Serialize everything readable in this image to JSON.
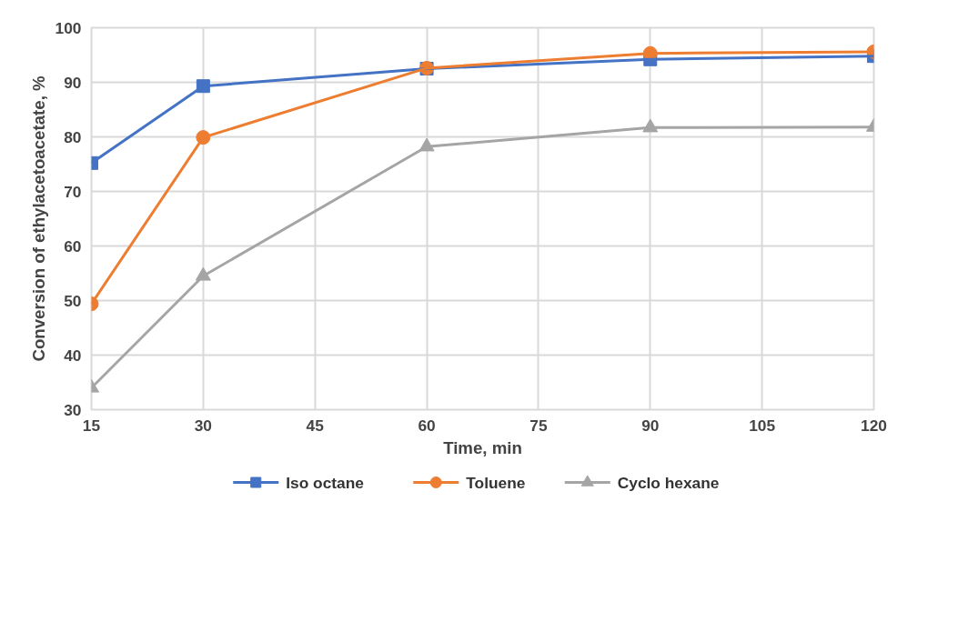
{
  "chart_data": {
    "type": "line",
    "xlabel": "Time, min",
    "ylabel": "Conversion of ethylacetoacetate, %",
    "x": [
      15,
      30,
      60,
      90,
      120
    ],
    "series": [
      {
        "name": "Iso octane",
        "color": "#4472c4",
        "marker": "square",
        "values": [
          75.2,
          89.3,
          92.5,
          94.2,
          94.8
        ]
      },
      {
        "name": "Toluene",
        "color": "#ed7d31",
        "marker": "circle",
        "values": [
          49.4,
          79.9,
          92.6,
          95.3,
          95.6
        ]
      },
      {
        "name": "Cyclo hexane",
        "color": "#a5a5a5",
        "marker": "triangle",
        "values": [
          34,
          54.5,
          78.2,
          81.7,
          81.8
        ]
      }
    ],
    "xlim": [
      15,
      120
    ],
    "xticks": [
      15,
      30,
      45,
      60,
      75,
      90,
      105,
      120
    ],
    "ylim": [
      30,
      100
    ],
    "yticks": [
      30,
      40,
      50,
      60,
      70,
      80,
      90,
      100
    ],
    "grid": true,
    "legend": "bottom",
    "line_style": "solid"
  }
}
